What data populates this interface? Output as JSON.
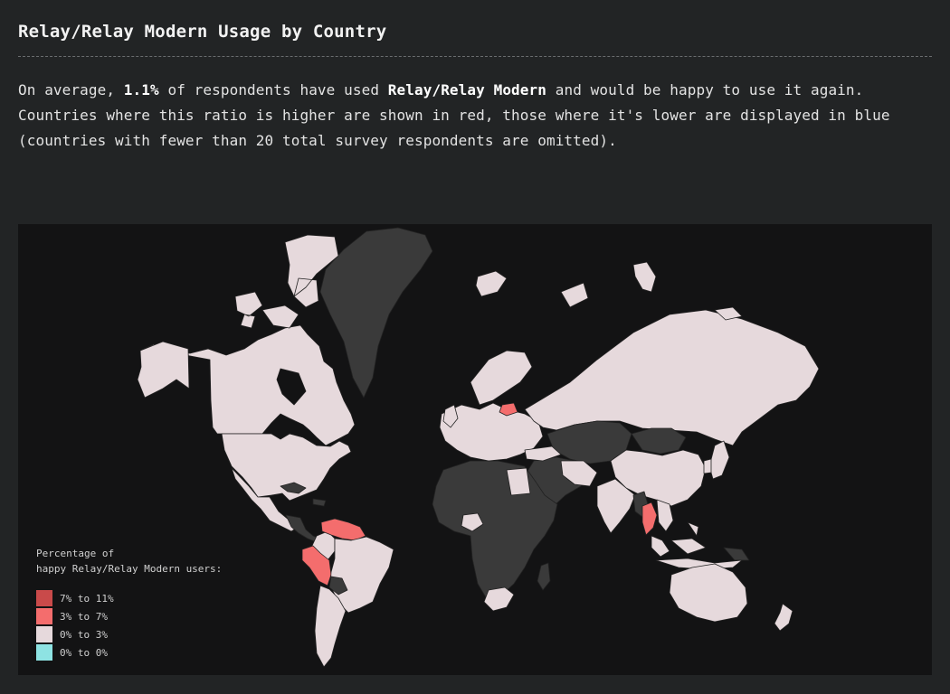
{
  "title": "Relay/Relay Modern Usage by Country",
  "description": {
    "p1": "On average, ",
    "average_value": "1.1%",
    "p2": " of respondents have used ",
    "tool_name": "Relay/Relay Modern",
    "p3": " and would be happy to use it again. Countries where this ratio is higher are shown in red, those where it's lower are displayed in blue (countries with fewer than 20 total survey respondents are omitted)."
  },
  "legend": {
    "title_line1": "Percentage of",
    "title_line2": "happy Relay/Relay Modern users:",
    "items": [
      {
        "label": "7% to 11%",
        "color": "#c94a4a"
      },
      {
        "label": "3% to 7%",
        "color": "#f46d6d"
      },
      {
        "label": "0% to 3%",
        "color": "#e6d9dc"
      },
      {
        "label": "0% to 0%",
        "color": "#8ee3e3"
      }
    ]
  },
  "colors": {
    "no_data": "#3a3a3a",
    "low": "#e6d9dc",
    "mid": "#f46d6d",
    "high": "#c94a4a",
    "border": "#222222",
    "background": "#131314"
  },
  "countries_highlighted_mid": [
    "Peru",
    "Venezuela",
    "Thailand",
    "Latvia"
  ]
}
